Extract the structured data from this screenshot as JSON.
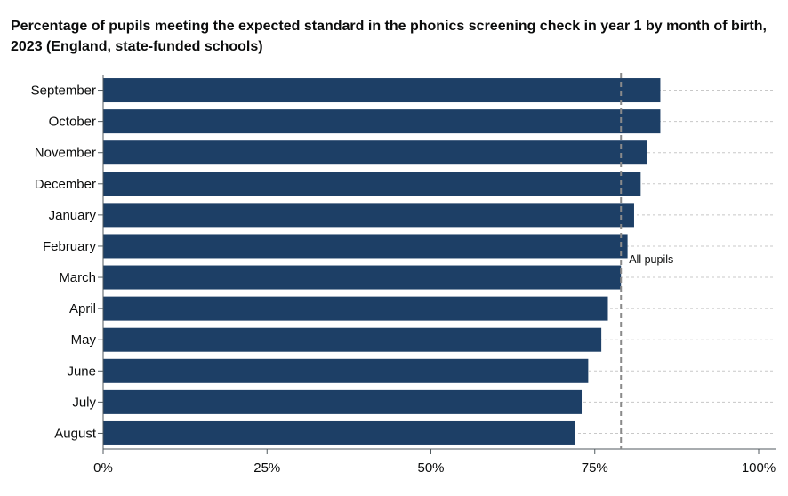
{
  "chart_data": {
    "type": "bar",
    "orientation": "horizontal",
    "title": "Percentage of pupils meeting the expected standard in the phonics screening check in year 1 by month of birth, 2023 (England, state-funded schools)",
    "categories": [
      "September",
      "October",
      "November",
      "December",
      "January",
      "February",
      "March",
      "April",
      "May",
      "June",
      "July",
      "August"
    ],
    "values": [
      85,
      85,
      83,
      82,
      81,
      80,
      79,
      77,
      76,
      74,
      73,
      72
    ],
    "xlim": [
      0,
      100
    ],
    "ticks": [
      0,
      25,
      50,
      75,
      100
    ],
    "tick_labels": [
      "0%",
      "25%",
      "50%",
      "75%",
      "100%"
    ],
    "reference_line": {
      "label": "All pupils",
      "value": 79
    },
    "bar_color": "#1d3f66",
    "grid": true
  }
}
